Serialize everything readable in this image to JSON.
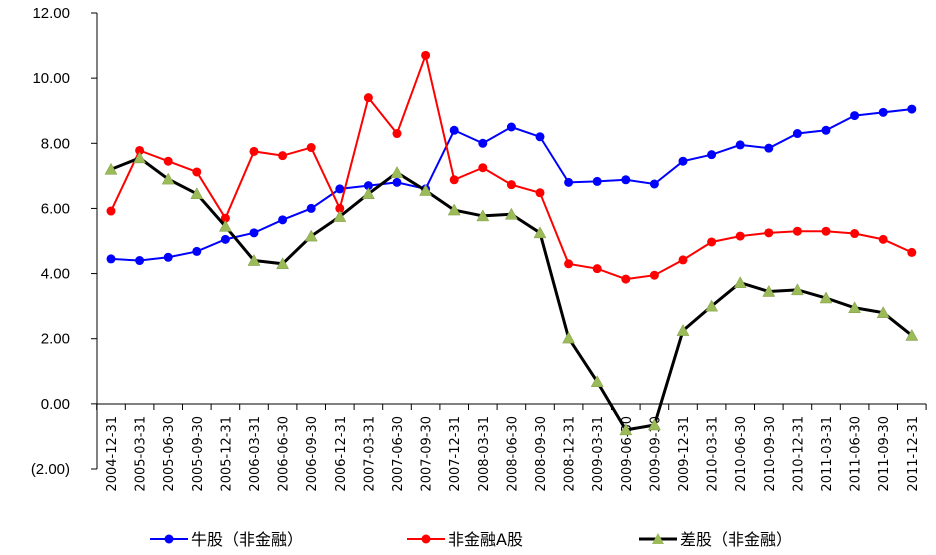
{
  "chart_data": {
    "type": "line",
    "title": "",
    "xlabel": "",
    "ylabel": "",
    "ylim": [
      -2,
      12
    ],
    "yticks": [
      {
        "value": 12,
        "label": "12.00"
      },
      {
        "value": 10,
        "label": "10.00"
      },
      {
        "value": 8,
        "label": "8.00"
      },
      {
        "value": 6,
        "label": "6.00"
      },
      {
        "value": 4,
        "label": "4.00"
      },
      {
        "value": 2,
        "label": "2.00"
      },
      {
        "value": 0,
        "label": "0.00"
      },
      {
        "value": -2,
        "label": "(2.00)"
      }
    ],
    "negative_label_color": "#ff0000",
    "grid": false,
    "legend_position": "bottom",
    "categories": [
      "2004-12-31",
      "2005-03-31",
      "2005-06-30",
      "2005-09-30",
      "2005-12-31",
      "2006-03-31",
      "2006-06-30",
      "2006-09-30",
      "2006-12-31",
      "2007-03-31",
      "2007-06-30",
      "2007-09-30",
      "2007-12-31",
      "2008-03-31",
      "2008-06-30",
      "2008-09-30",
      "2008-12-31",
      "2009-03-31",
      "2009-06-30",
      "2009-09-30",
      "2009-12-31",
      "2010-03-31",
      "2010-06-30",
      "2010-09-30",
      "2010-12-31",
      "2011-03-31",
      "2011-06-30",
      "2011-09-30",
      "2011-12-31"
    ],
    "series": [
      {
        "name": "牛股（非金融）",
        "color": "#0000ff",
        "line_color": "#0000ff",
        "marker": "circle",
        "values": [
          4.45,
          4.4,
          4.5,
          4.68,
          5.05,
          5.25,
          5.65,
          6.0,
          6.6,
          6.7,
          6.8,
          6.6,
          8.4,
          8.0,
          8.5,
          8.2,
          6.8,
          6.83,
          6.88,
          6.75,
          7.45,
          7.65,
          7.95,
          7.85,
          8.3,
          8.4,
          8.85,
          8.95,
          9.05
        ]
      },
      {
        "name": "非金融A股",
        "color": "#ff0000",
        "line_color": "#ff0000",
        "marker": "circle",
        "values": [
          5.92,
          7.78,
          7.45,
          7.12,
          5.7,
          7.75,
          7.62,
          7.87,
          6.0,
          9.4,
          8.3,
          10.7,
          6.88,
          7.25,
          6.73,
          6.48,
          4.3,
          4.15,
          3.83,
          3.95,
          4.42,
          4.97,
          5.15,
          5.25,
          5.3,
          5.3,
          5.23,
          5.05,
          4.65
        ]
      },
      {
        "name": "差股（非金融）",
        "color": "#9bbb59",
        "line_color": "#000000",
        "marker": "triangle",
        "values": [
          7.2,
          7.55,
          6.9,
          6.45,
          5.45,
          4.4,
          4.3,
          5.15,
          5.75,
          6.45,
          7.1,
          6.55,
          5.95,
          5.77,
          5.82,
          5.25,
          2.02,
          0.68,
          -0.8,
          -0.65,
          2.25,
          3.0,
          3.72,
          3.45,
          3.5,
          3.25,
          2.95,
          2.8,
          2.1
        ]
      }
    ]
  }
}
